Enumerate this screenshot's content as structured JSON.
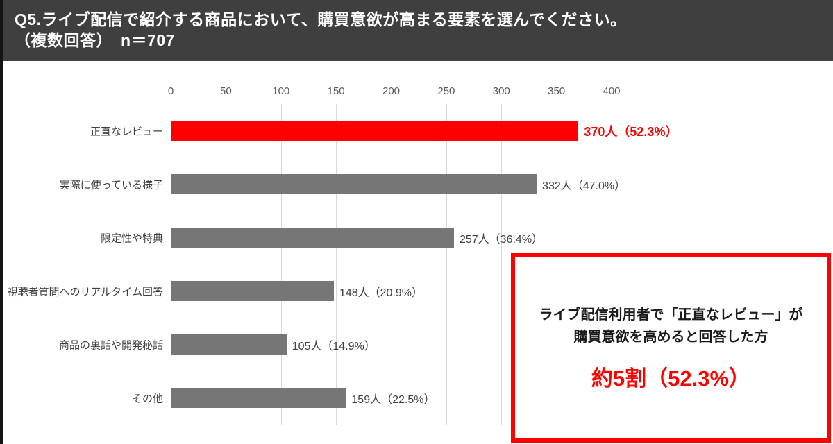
{
  "header": {
    "title_line1": "Q5.ライブ配信で紹介する商品において、購買意欲が高まる要素を選んでください。",
    "title_line2": "（複数回答）　n＝707",
    "bg_color": "#3F3F3F",
    "text_color": "#FFFFFF"
  },
  "chart_data": {
    "type": "bar",
    "orientation": "horizontal",
    "title": "Q5.ライブ配信で紹介する商品において、購買意欲が高まる要素を選んでください。（複数回答） n＝707",
    "n": 707,
    "categories": [
      "正直なレビュー",
      "実際に使っている様子",
      "限定性や特典",
      "視聴者質問へのリアルタイム回答",
      "商品の裏話や開発秘話",
      "その他"
    ],
    "values": [
      370,
      332,
      257,
      148,
      105,
      159
    ],
    "percentages": [
      52.3,
      47.0,
      36.4,
      20.9,
      14.9,
      22.5
    ],
    "value_labels": [
      "370人（52.3%）",
      "332人（47.0%）",
      "257人（36.4%）",
      "148人（20.9%）",
      "105人（14.9%）",
      "159人（22.5%）"
    ],
    "highlight_index": 0,
    "bar_color": "#767676",
    "highlight_color": "#FF0000",
    "highlight_label_color": "#FF0000",
    "grid": true,
    "grid_color": "#D9D9D9",
    "xlim": [
      0,
      400
    ],
    "xticks": [
      0,
      50,
      100,
      150,
      200,
      250,
      300,
      350,
      400
    ]
  },
  "callout": {
    "line1": "ライブ配信利用者で「正直なレビュー」が",
    "line2": "購買意欲を高めると回答した方",
    "stat": "約5割（52.3%）",
    "border_color": "#FF0000",
    "stat_color": "#FF0000"
  }
}
